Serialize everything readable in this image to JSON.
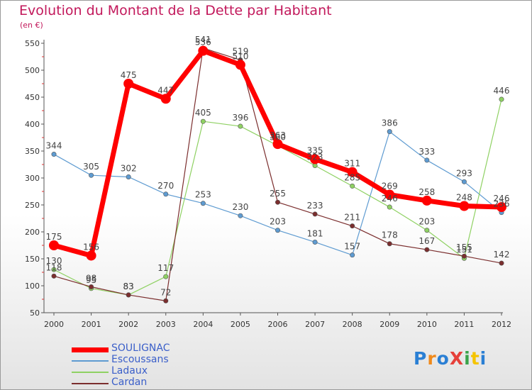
{
  "title": "Evolution du Montant de la Dette par Habitant",
  "subtitle": "(en €)",
  "logo": {
    "text": "ProXiti",
    "colors": [
      "#2a7fd4",
      "#f08a1c",
      "#2a7fd4",
      "#e6403a",
      "#3aa34a",
      "#f5c400",
      "#2a7fd4"
    ]
  },
  "chart_data": {
    "type": "line",
    "x": [
      "2000",
      "2001",
      "2002",
      "2003",
      "2004",
      "2005",
      "2006",
      "2007",
      "2008",
      "2009",
      "2010",
      "2011",
      "2012"
    ],
    "ylim": [
      50,
      550
    ],
    "yticks": [
      50,
      100,
      150,
      200,
      250,
      300,
      350,
      400,
      450,
      500,
      550
    ],
    "grid": false,
    "legend": "bottom-left",
    "series": [
      {
        "name": "SOULIGNAC",
        "color": "#ff0000",
        "values": [
          175,
          156,
          475,
          447,
          536,
          510,
          363,
          335,
          311,
          269,
          258,
          248,
          246
        ]
      },
      {
        "name": "Escoussans",
        "color": "#5e9bd1",
        "values": [
          344,
          305,
          302,
          270,
          253,
          230,
          203,
          181,
          157,
          386,
          333,
          293,
          236
        ]
      },
      {
        "name": "Ladaux",
        "color": "#8fd163",
        "values": [
          130,
          95,
          83,
          117,
          405,
          396,
          360,
          323,
          285,
          246,
          203,
          151,
          446
        ]
      },
      {
        "name": "Cardan",
        "color": "#7b2e2e",
        "values": [
          118,
          98,
          83,
          72,
          541,
          519,
          255,
          233,
          211,
          178,
          167,
          155,
          142
        ]
      }
    ]
  }
}
